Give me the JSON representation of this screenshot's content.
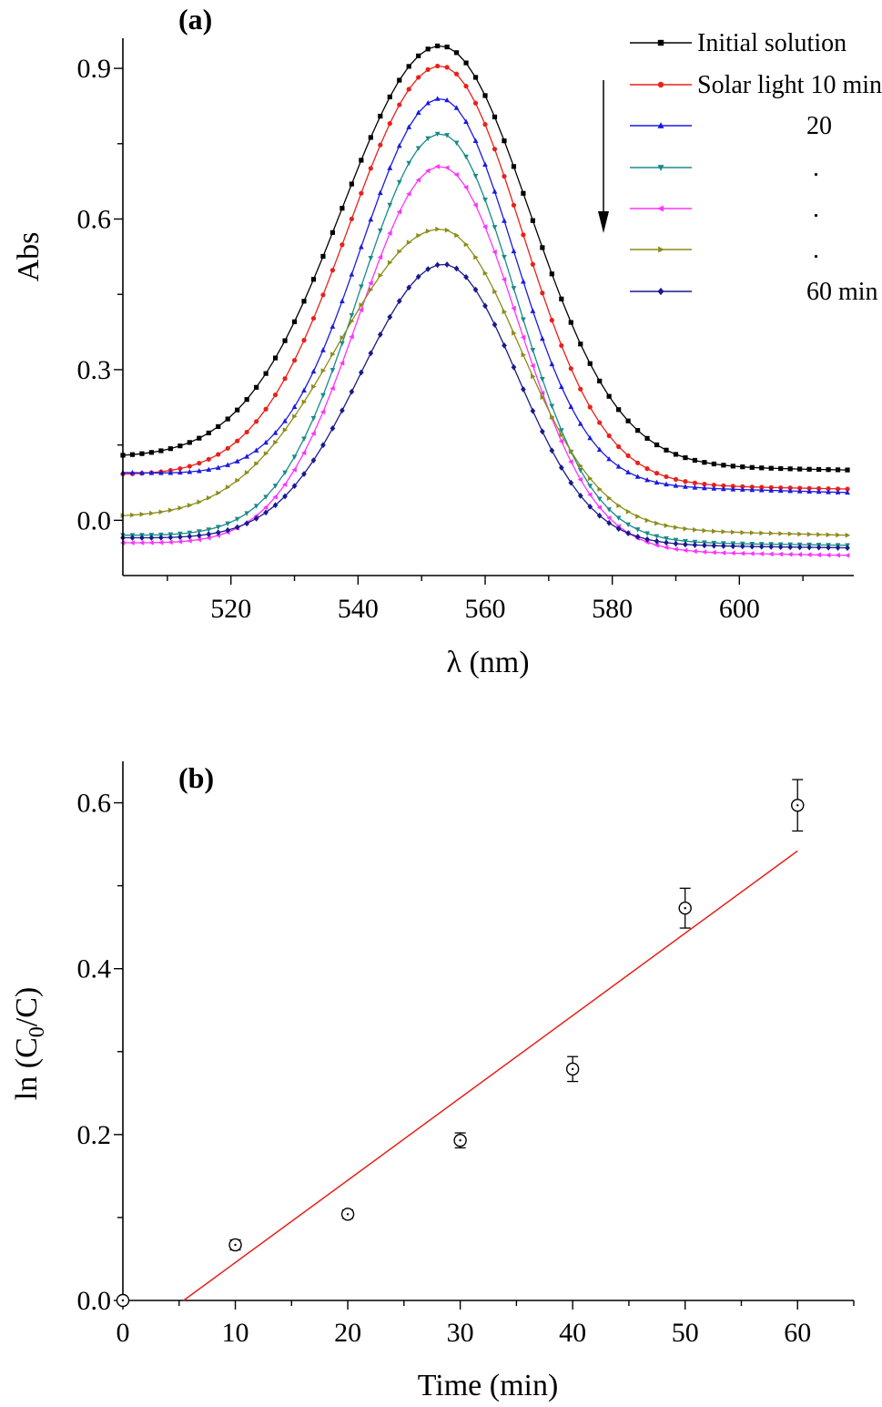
{
  "figure": {
    "panels": [
      "(a)",
      "(b)"
    ]
  },
  "chart_data": [
    {
      "type": "line",
      "panel_label": "(a)",
      "xlabel": "λ (nm)",
      "ylabel": "Abs",
      "xlim": [
        503,
        618
      ],
      "ylim": [
        -0.11,
        0.96
      ],
      "xticks": [
        520,
        540,
        560,
        580,
        600
      ],
      "xtick_labels": [
        "520",
        "540",
        "560",
        "580",
        "600"
      ],
      "yticks": [
        0.0,
        0.3,
        0.6,
        0.9
      ],
      "ytick_labels": [
        "0.0",
        "0.3",
        "0.6",
        "0.9"
      ],
      "legend_position": "top-right",
      "arrow_annotation": "downward arrow indicating decreasing absorbance with time",
      "x_range": [
        503,
        618
      ],
      "x_step": 1.5,
      "series": [
        {
          "name": "Initial solution",
          "legend_text": "Initial solution",
          "color": "#000000",
          "marker": "square",
          "peak_x": 553,
          "peak": 0.945,
          "left_end": 0.125,
          "right_end": 0.1,
          "sigma_left": 15.5,
          "sigma_right": 14.0
        },
        {
          "name": "Solar light 10 min",
          "legend_text": "Solar light 10 min",
          "color": "#e8211b",
          "marker": "circle",
          "peak_x": 553,
          "peak": 0.905,
          "left_end": 0.09,
          "right_end": 0.062,
          "sigma_left": 14.5,
          "sigma_right": 12.8
        },
        {
          "name": "20",
          "legend_text": "20",
          "color": "#1a1ae0",
          "marker": "triangle-up",
          "peak_x": 553,
          "peak": 0.84,
          "left_end": 0.095,
          "right_end": 0.055,
          "sigma_left": 12.5,
          "sigma_right": 11.5
        },
        {
          "name": ".",
          "legend_text": ".",
          "color": "#1a8a8a",
          "marker": "triangle-down",
          "peak_x": 553,
          "peak": 0.77,
          "left_end": -0.03,
          "right_end": -0.05,
          "sigma_left": 12.8,
          "sigma_right": 11.8
        },
        {
          "name": ".",
          "legend_text": ".",
          "color": "#ff33ff",
          "marker": "triangle-left",
          "peak_x": 553,
          "peak": 0.705,
          "left_end": -0.045,
          "right_end": -0.07,
          "sigma_left": 12.8,
          "sigma_right": 12.0
        },
        {
          "name": ".",
          "legend_text": ".",
          "color": "#8c8c1a",
          "marker": "triangle-right",
          "peak_x": 553,
          "peak": 0.58,
          "left_end": 0.005,
          "right_end": -0.03,
          "sigma_left": 16.0,
          "sigma_right": 12.5
        },
        {
          "name": "60 min",
          "legend_text": "60 min",
          "color": "#1a1a8c",
          "marker": "diamond",
          "peak_x": 553.5,
          "peak": 0.51,
          "left_end": -0.035,
          "right_end": -0.055,
          "sigma_left": 13.0,
          "sigma_right": 11.5
        }
      ]
    },
    {
      "type": "scatter",
      "panel_label": "(b)",
      "xlabel": "Time (min)",
      "ylabel_prefix": "ln (C",
      "ylabel_sub": "0",
      "ylabel_suffix": "/C)",
      "xlim": [
        0,
        65
      ],
      "ylim": [
        0,
        0.65
      ],
      "xticks": [
        0,
        10,
        20,
        30,
        40,
        50,
        60
      ],
      "xtick_labels": [
        "0",
        "10",
        "20",
        "30",
        "40",
        "50",
        "60"
      ],
      "yticks": [
        0.0,
        0.2,
        0.4,
        0.6
      ],
      "ytick_labels": [
        "0.0",
        "0.2",
        "0.4",
        "0.6"
      ],
      "points": [
        {
          "x": 0,
          "y": 0.0,
          "err": 0.0
        },
        {
          "x": 10,
          "y": 0.067,
          "err": 0.006
        },
        {
          "x": 20,
          "y": 0.104,
          "err": 0.005
        },
        {
          "x": 30,
          "y": 0.193,
          "err": 0.009
        },
        {
          "x": 40,
          "y": 0.279,
          "err": 0.015
        },
        {
          "x": 50,
          "y": 0.473,
          "err": 0.024
        },
        {
          "x": 60,
          "y": 0.597,
          "err": 0.031
        }
      ],
      "fit_line": {
        "color": "#e8211b",
        "x": [
          5.4,
          60
        ],
        "y": [
          0.0,
          0.542
        ]
      }
    }
  ]
}
